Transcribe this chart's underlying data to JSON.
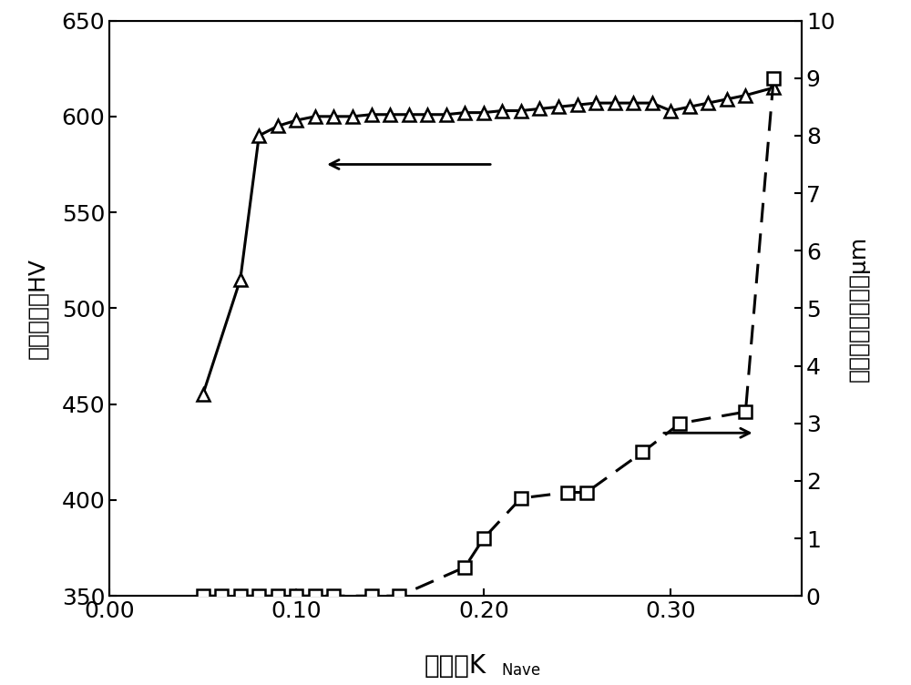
{
  "triangle_x": [
    0.05,
    0.07,
    0.08,
    0.09,
    0.1,
    0.11,
    0.12,
    0.13,
    0.14,
    0.15,
    0.16,
    0.17,
    0.18,
    0.19,
    0.2,
    0.21,
    0.22,
    0.23,
    0.24,
    0.25,
    0.26,
    0.27,
    0.28,
    0.29,
    0.3,
    0.31,
    0.32,
    0.33,
    0.34,
    0.355
  ],
  "triangle_y": [
    455,
    515,
    590,
    595,
    598,
    600,
    600,
    600,
    601,
    601,
    601,
    601,
    601,
    602,
    602,
    603,
    603,
    604,
    605,
    606,
    607,
    607,
    607,
    607,
    603,
    605,
    607,
    609,
    611,
    615
  ],
  "square_x": [
    0.05,
    0.06,
    0.07,
    0.08,
    0.09,
    0.1,
    0.11,
    0.12,
    0.14,
    0.155,
    0.19,
    0.2,
    0.22,
    0.245,
    0.255,
    0.285,
    0.305,
    0.34,
    0.355
  ],
  "square_y_um": [
    0,
    0,
    0,
    0,
    0,
    0,
    0,
    0,
    0,
    0,
    0.5,
    1.0,
    1.7,
    1.8,
    1.8,
    2.5,
    3.0,
    3.2,
    9.0
  ],
  "xlim": [
    0.0,
    0.37
  ],
  "ylim_left": [
    350,
    650
  ],
  "ylim_right": [
    0,
    10
  ],
  "xticks": [
    0.0,
    0.1,
    0.2,
    0.3
  ],
  "yticks_left": [
    350,
    400,
    450,
    500,
    550,
    600,
    650
  ],
  "yticks_right": [
    0,
    1,
    2,
    3,
    4,
    5,
    6,
    7,
    8,
    9,
    10
  ],
  "background_color": "#ffffff",
  "figsize": [
    10.0,
    7.52
  ]
}
